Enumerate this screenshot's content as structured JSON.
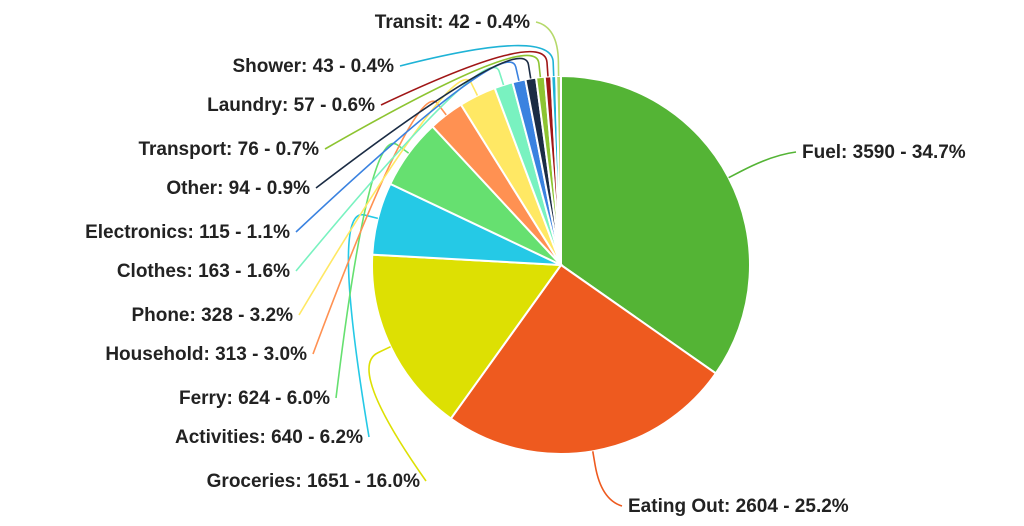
{
  "chart_data": {
    "type": "pie",
    "title": "",
    "slices": [
      {
        "label": "Fuel",
        "value": 3590,
        "percent": "34.7%",
        "text": "Fuel: 3590 - 34.7%",
        "color": "#54b435"
      },
      {
        "label": "Eating Out",
        "value": 2604,
        "percent": "25.2%",
        "text": "Eating Out: 2604 - 25.2%",
        "color": "#ee5a1f"
      },
      {
        "label": "Groceries",
        "value": 1651,
        "percent": "16.0%",
        "text": "Groceries: 1651 - 16.0%",
        "color": "#dde003"
      },
      {
        "label": "Activities",
        "value": 640,
        "percent": "6.2%",
        "text": "Activities: 640 - 6.2%",
        "color": "#25c9e6"
      },
      {
        "label": "Ferry",
        "value": 624,
        "percent": "6.0%",
        "text": "Ferry: 624 - 6.0%",
        "color": "#66e070"
      },
      {
        "label": "Household",
        "value": 313,
        "percent": "3.0%",
        "text": "Household: 313 - 3.0%",
        "color": "#ff9152"
      },
      {
        "label": "Phone",
        "value": 328,
        "percent": "3.2%",
        "text": "Phone: 328 - 3.2%",
        "color": "#ffe864"
      },
      {
        "label": "Clothes",
        "value": 163,
        "percent": "1.6%",
        "text": "Clothes: 163 - 1.6%",
        "color": "#79f2c0"
      },
      {
        "label": "Electronics",
        "value": 115,
        "percent": "1.1%",
        "text": "Electronics: 115 - 1.1%",
        "color": "#3a82e0"
      },
      {
        "label": "Other",
        "value": 94,
        "percent": "0.9%",
        "text": "Other: 94 - 0.9%",
        "color": "#1b2c44"
      },
      {
        "label": "Transport",
        "value": 76,
        "percent": "0.7%",
        "text": "Transport: 76 - 0.7%",
        "color": "#8dc431"
      },
      {
        "label": "Laundry",
        "value": 57,
        "percent": "0.6%",
        "text": "Laundry: 57 - 0.6%",
        "color": "#a01616"
      },
      {
        "label": "Shower",
        "value": 43,
        "percent": "0.4%",
        "text": "Shower: 43 - 0.4%",
        "color": "#1fb3d6"
      },
      {
        "label": "Transit",
        "value": 42,
        "percent": "0.4%",
        "text": "Transit: 42 - 0.4%",
        "color": "#b5d96a"
      }
    ]
  }
}
